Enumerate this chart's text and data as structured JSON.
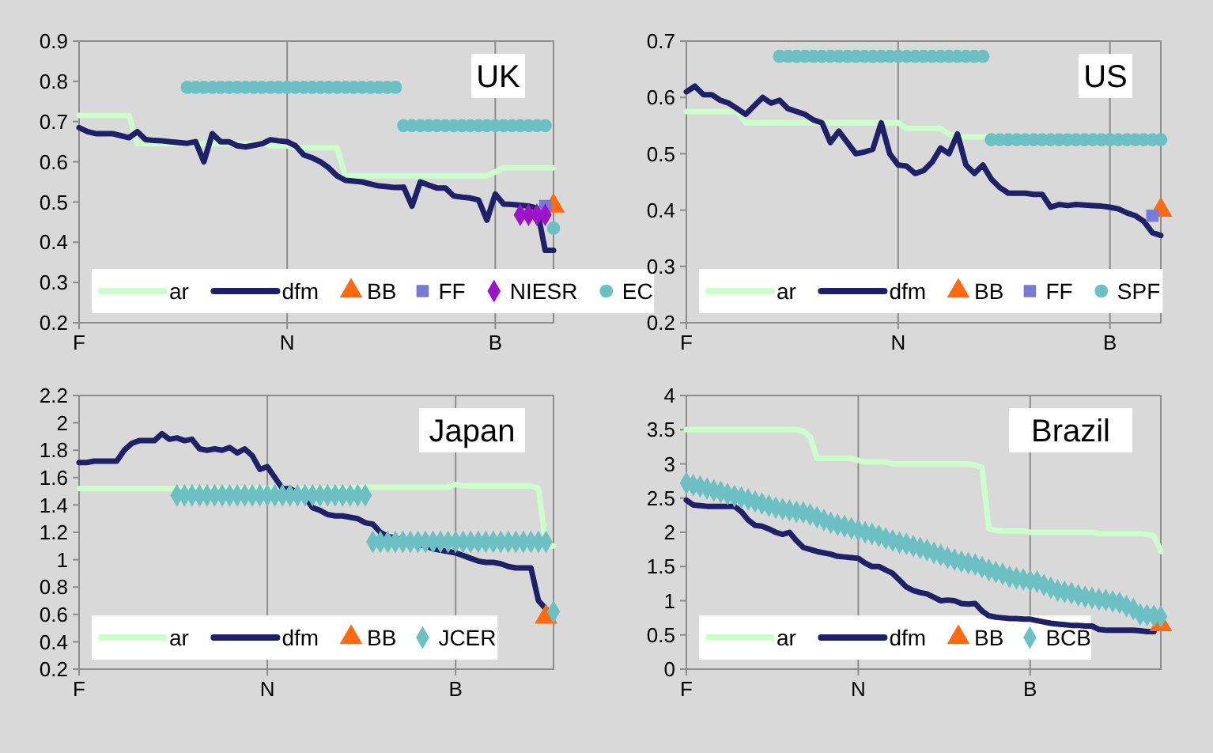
{
  "chart_data": [
    {
      "type": "line",
      "title": "UK",
      "categories": [
        "F",
        null,
        null,
        null,
        null,
        null,
        null,
        null,
        null,
        null,
        null,
        null,
        null,
        null,
        null,
        null,
        null,
        null,
        null,
        null,
        null,
        null,
        null,
        null,
        null,
        "N",
        null,
        null,
        null,
        null,
        null,
        null,
        null,
        null,
        null,
        null,
        null,
        null,
        null,
        null,
        null,
        null,
        null,
        null,
        null,
        null,
        null,
        null,
        null,
        null,
        "B",
        null,
        null,
        null,
        null,
        null,
        null,
        null
      ],
      "ylim": [
        0.2,
        0.9
      ],
      "yticks": [
        0.2,
        0.3,
        0.4,
        0.5,
        0.6,
        0.7,
        0.8,
        0.9
      ],
      "grid": "x",
      "legend": "bottom",
      "series": [
        {
          "name": "ar",
          "color": "#ccffcc",
          "values": [
            0.715,
            0.715,
            0.715,
            0.715,
            0.715,
            0.715,
            0.715,
            0.645,
            0.645,
            0.645,
            0.645,
            0.645,
            0.645,
            0.645,
            0.645,
            0.645,
            0.645,
            0.645,
            0.645,
            0.645,
            0.645,
            0.645,
            0.645,
            0.64,
            0.64,
            0.64,
            0.635,
            0.635,
            0.635,
            0.635,
            0.635,
            0.635,
            0.565,
            0.565,
            0.565,
            0.565,
            0.565,
            0.565,
            0.565,
            0.565,
            0.565,
            0.565,
            0.565,
            0.565,
            0.565,
            0.565,
            0.565,
            0.565,
            0.565,
            0.565,
            0.575,
            0.585,
            0.585,
            0.585,
            0.585,
            0.585,
            0.585,
            0.585
          ]
        },
        {
          "name": "dfm",
          "color": "#1f2068",
          "values": [
            0.685,
            0.675,
            0.67,
            0.67,
            0.67,
            0.665,
            0.66,
            0.675,
            0.655,
            0.653,
            0.652,
            0.65,
            0.648,
            0.646,
            0.65,
            0.6,
            0.67,
            0.65,
            0.65,
            0.64,
            0.637,
            0.641,
            0.645,
            0.655,
            0.652,
            0.65,
            0.64,
            0.617,
            0.61,
            0.6,
            0.585,
            0.565,
            0.554,
            0.552,
            0.55,
            0.545,
            0.54,
            0.538,
            0.536,
            0.537,
            0.49,
            0.55,
            0.542,
            0.535,
            0.535,
            0.515,
            0.512,
            0.51,
            0.505,
            0.455,
            0.52,
            0.495,
            0.494,
            0.492,
            0.49,
            0.485,
            0.38,
            0.38
          ]
        },
        {
          "name": "BB",
          "type": "scatter",
          "marker": "triangle",
          "color": "#ff6a13",
          "values": [
            null,
            null,
            null,
            null,
            null,
            null,
            null,
            null,
            null,
            null,
            null,
            null,
            null,
            null,
            null,
            null,
            null,
            null,
            null,
            null,
            null,
            null,
            null,
            null,
            null,
            null,
            null,
            null,
            null,
            null,
            null,
            null,
            null,
            null,
            null,
            null,
            null,
            null,
            null,
            null,
            null,
            null,
            null,
            null,
            null,
            null,
            null,
            null,
            null,
            null,
            null,
            null,
            null,
            null,
            null,
            null,
            null,
            0.49
          ]
        },
        {
          "name": "FF",
          "type": "scatter",
          "marker": "square",
          "color": "#7a78d8",
          "values": [
            null,
            null,
            null,
            null,
            null,
            null,
            null,
            null,
            null,
            null,
            null,
            null,
            null,
            null,
            null,
            null,
            null,
            null,
            null,
            null,
            null,
            null,
            null,
            null,
            null,
            null,
            null,
            null,
            null,
            null,
            null,
            null,
            null,
            null,
            null,
            null,
            null,
            null,
            null,
            null,
            null,
            null,
            null,
            null,
            null,
            null,
            null,
            null,
            null,
            null,
            null,
            null,
            null,
            null,
            null,
            null,
            0.49,
            null
          ]
        },
        {
          "name": "NIESR",
          "type": "scatter",
          "marker": "diamond",
          "color": "#9b14c8",
          "values": [
            null,
            null,
            null,
            null,
            null,
            null,
            null,
            null,
            null,
            null,
            null,
            null,
            null,
            null,
            null,
            null,
            null,
            null,
            null,
            null,
            null,
            null,
            null,
            null,
            null,
            null,
            null,
            null,
            null,
            null,
            null,
            null,
            null,
            null,
            null,
            null,
            null,
            null,
            null,
            null,
            null,
            null,
            null,
            null,
            null,
            null,
            null,
            null,
            null,
            null,
            null,
            null,
            null,
            0.468,
            0.468,
            0.468,
            0.468,
            null
          ]
        },
        {
          "name": "EC",
          "type": "scatter",
          "marker": "circle",
          "color": "#6cc0c4",
          "values": [
            null,
            null,
            null,
            null,
            null,
            null,
            null,
            null,
            null,
            null,
            null,
            null,
            null,
            0.785,
            0.785,
            0.785,
            0.785,
            0.785,
            0.785,
            0.785,
            0.785,
            0.785,
            0.785,
            0.785,
            0.785,
            0.785,
            0.785,
            0.785,
            0.785,
            0.785,
            0.785,
            0.785,
            0.785,
            0.785,
            0.785,
            0.785,
            0.785,
            0.785,
            0.785,
            0.69,
            0.69,
            0.69,
            0.69,
            0.69,
            0.69,
            0.69,
            0.69,
            0.69,
            0.69,
            0.69,
            0.69,
            0.69,
            0.69,
            0.69,
            0.69,
            0.69,
            0.69,
            0.435
          ]
        }
      ]
    },
    {
      "type": "line",
      "title": "US",
      "categories": [
        "F",
        null,
        null,
        null,
        null,
        null,
        null,
        null,
        null,
        null,
        null,
        null,
        null,
        null,
        null,
        null,
        null,
        null,
        null,
        null,
        null,
        null,
        null,
        null,
        null,
        "N",
        null,
        null,
        null,
        null,
        null,
        null,
        null,
        null,
        null,
        null,
        null,
        null,
        null,
        null,
        null,
        null,
        null,
        null,
        null,
        null,
        null,
        null,
        null,
        null,
        "B",
        null,
        null,
        null,
        null,
        null,
        null
      ],
      "ylim": [
        0.2,
        0.7
      ],
      "yticks": [
        0.2,
        0.3,
        0.4,
        0.5,
        0.6,
        0.7
      ],
      "grid": "x",
      "legend": "bottom",
      "series": [
        {
          "name": "ar",
          "color": "#ccffcc",
          "values": [
            0.575,
            0.575,
            0.575,
            0.575,
            0.575,
            0.575,
            0.575,
            0.555,
            0.555,
            0.555,
            0.555,
            0.555,
            0.555,
            0.555,
            0.555,
            0.555,
            0.555,
            0.555,
            0.555,
            0.555,
            0.555,
            0.555,
            0.555,
            0.555,
            0.555,
            0.555,
            0.545,
            0.545,
            0.545,
            0.545,
            0.545,
            0.535,
            0.53,
            0.53,
            0.53,
            0.53,
            0.53,
            0.53,
            0.53,
            0.53,
            0.53,
            0.53,
            0.53,
            0.53,
            0.53,
            0.53,
            0.53,
            0.53,
            0.53,
            0.53,
            0.53,
            0.53,
            0.53,
            0.53,
            0.53,
            0.53,
            0.53
          ]
        },
        {
          "name": "dfm",
          "color": "#1f2068",
          "values": [
            0.61,
            0.62,
            0.605,
            0.605,
            0.595,
            0.59,
            0.58,
            0.57,
            0.585,
            0.6,
            0.59,
            0.595,
            0.58,
            0.575,
            0.57,
            0.56,
            0.555,
            0.52,
            0.54,
            0.52,
            0.5,
            0.503,
            0.508,
            0.555,
            0.5,
            0.48,
            0.478,
            0.465,
            0.47,
            0.485,
            0.51,
            0.5,
            0.535,
            0.48,
            0.465,
            0.48,
            0.455,
            0.44,
            0.43,
            0.43,
            0.43,
            0.428,
            0.428,
            0.405,
            0.41,
            0.408,
            0.41,
            0.409,
            0.408,
            0.407,
            0.405,
            0.402,
            0.395,
            0.39,
            0.38,
            0.36,
            0.355
          ]
        },
        {
          "name": "BB",
          "type": "scatter",
          "marker": "triangle",
          "color": "#ff6a13",
          "values": [
            null,
            null,
            null,
            null,
            null,
            null,
            null,
            null,
            null,
            null,
            null,
            null,
            null,
            null,
            null,
            null,
            null,
            null,
            null,
            null,
            null,
            null,
            null,
            null,
            null,
            null,
            null,
            null,
            null,
            null,
            null,
            null,
            null,
            null,
            null,
            null,
            null,
            null,
            null,
            null,
            null,
            null,
            null,
            null,
            null,
            null,
            null,
            null,
            null,
            null,
            null,
            null,
            null,
            null,
            null,
            null,
            0.4
          ]
        },
        {
          "name": "FF",
          "type": "scatter",
          "marker": "square",
          "color": "#7a78d8",
          "values": [
            null,
            null,
            null,
            null,
            null,
            null,
            null,
            null,
            null,
            null,
            null,
            null,
            null,
            null,
            null,
            null,
            null,
            null,
            null,
            null,
            null,
            null,
            null,
            null,
            null,
            null,
            null,
            null,
            null,
            null,
            null,
            null,
            null,
            null,
            null,
            null,
            null,
            null,
            null,
            null,
            null,
            null,
            null,
            null,
            null,
            null,
            null,
            null,
            null,
            null,
            null,
            null,
            null,
            null,
            null,
            0.39,
            null
          ]
        },
        {
          "name": "SPF",
          "type": "scatter",
          "marker": "circle",
          "color": "#6cc0c4",
          "values": [
            null,
            null,
            null,
            null,
            null,
            null,
            null,
            null,
            null,
            null,
            null,
            0.673,
            0.673,
            0.673,
            0.673,
            0.673,
            0.673,
            0.673,
            0.673,
            0.673,
            0.673,
            0.673,
            0.673,
            0.673,
            0.673,
            0.673,
            0.673,
            0.673,
            0.673,
            0.673,
            0.673,
            0.673,
            0.673,
            0.673,
            0.673,
            0.673,
            0.525,
            0.525,
            0.525,
            0.525,
            0.525,
            0.525,
            0.525,
            0.525,
            0.525,
            0.525,
            0.525,
            0.525,
            0.525,
            0.525,
            0.525,
            0.525,
            0.525,
            0.525,
            0.525,
            0.525,
            0.525
          ]
        }
      ]
    },
    {
      "type": "line",
      "title": "Japan",
      "categories": [
        "F",
        null,
        null,
        null,
        null,
        null,
        null,
        null,
        null,
        null,
        null,
        null,
        null,
        null,
        null,
        null,
        null,
        null,
        null,
        null,
        null,
        null,
        null,
        null,
        null,
        "N",
        null,
        null,
        null,
        null,
        null,
        null,
        null,
        null,
        null,
        null,
        null,
        null,
        null,
        null,
        null,
        null,
        null,
        null,
        null,
        null,
        null,
        null,
        null,
        null,
        "B",
        null,
        null,
        null,
        null,
        null,
        null,
        null,
        null,
        null,
        null,
        null,
        null,
        null
      ],
      "ylim": [
        0.2,
        2.2
      ],
      "yticks": [
        0.2,
        0.4,
        0.6,
        0.8,
        1,
        1.2,
        1.4,
        1.6,
        1.8,
        2,
        2.2
      ],
      "grid": "x",
      "legend": "bottom",
      "series": [
        {
          "name": "ar",
          "color": "#ccffcc",
          "values": [
            1.52,
            1.52,
            1.52,
            1.52,
            1.52,
            1.52,
            1.52,
            1.52,
            1.52,
            1.52,
            1.52,
            1.52,
            1.52,
            1.52,
            1.52,
            1.52,
            1.52,
            1.52,
            1.52,
            1.52,
            1.52,
            1.52,
            1.52,
            1.52,
            1.52,
            1.52,
            1.52,
            1.52,
            1.52,
            1.52,
            1.52,
            1.52,
            1.52,
            1.52,
            1.52,
            1.52,
            1.52,
            1.53,
            1.53,
            1.53,
            1.53,
            1.53,
            1.53,
            1.53,
            1.53,
            1.53,
            1.53,
            1.53,
            1.53,
            1.53,
            1.55,
            1.54,
            1.54,
            1.54,
            1.54,
            1.54,
            1.54,
            1.54,
            1.54,
            1.54,
            1.54,
            1.52,
            1.1,
            1.1
          ]
        },
        {
          "name": "dfm",
          "color": "#1f2068",
          "values": [
            1.71,
            1.71,
            1.72,
            1.72,
            1.72,
            1.72,
            1.8,
            1.85,
            1.87,
            1.87,
            1.87,
            1.92,
            1.88,
            1.89,
            1.87,
            1.88,
            1.81,
            1.8,
            1.81,
            1.8,
            1.82,
            1.78,
            1.81,
            1.76,
            1.66,
            1.68,
            1.6,
            1.52,
            1.52,
            1.49,
            1.46,
            1.38,
            1.36,
            1.33,
            1.32,
            1.32,
            1.31,
            1.3,
            1.27,
            1.26,
            1.2,
            1.17,
            1.16,
            1.14,
            1.12,
            1.11,
            1.1,
            1.08,
            1.07,
            1.06,
            1.05,
            1.03,
            1.01,
            0.99,
            0.98,
            0.98,
            0.97,
            0.95,
            0.94,
            0.94,
            0.94,
            0.7,
            0.64,
            null
          ]
        },
        {
          "name": "BB",
          "type": "scatter",
          "marker": "triangle",
          "color": "#ff6a13",
          "values": [
            null,
            null,
            null,
            null,
            null,
            null,
            null,
            null,
            null,
            null,
            null,
            null,
            null,
            null,
            null,
            null,
            null,
            null,
            null,
            null,
            null,
            null,
            null,
            null,
            null,
            null,
            null,
            null,
            null,
            null,
            null,
            null,
            null,
            null,
            null,
            null,
            null,
            null,
            null,
            null,
            null,
            null,
            null,
            null,
            null,
            null,
            null,
            null,
            null,
            null,
            null,
            null,
            null,
            null,
            null,
            null,
            null,
            null,
            null,
            null,
            null,
            null,
            0.58,
            null
          ]
        },
        {
          "name": "JCER",
          "type": "scatter",
          "marker": "diamond",
          "color": "#6cc0c4",
          "values": [
            null,
            null,
            null,
            null,
            null,
            null,
            null,
            null,
            null,
            null,
            null,
            null,
            null,
            1.47,
            1.47,
            1.47,
            1.47,
            1.47,
            1.47,
            1.47,
            1.47,
            1.47,
            1.47,
            1.47,
            1.47,
            1.47,
            1.47,
            1.47,
            1.47,
            1.47,
            1.47,
            1.47,
            1.47,
            1.47,
            1.47,
            1.47,
            1.47,
            1.47,
            1.47,
            1.13,
            1.13,
            1.13,
            1.13,
            1.13,
            1.13,
            1.13,
            1.13,
            1.13,
            1.13,
            1.13,
            1.13,
            1.13,
            1.13,
            1.13,
            1.13,
            1.13,
            1.13,
            1.13,
            1.13,
            1.13,
            1.13,
            1.13,
            1.13,
            0.62
          ]
        }
      ]
    },
    {
      "type": "line",
      "title": "Brazil",
      "categories": [
        "F",
        null,
        null,
        null,
        null,
        null,
        null,
        null,
        null,
        null,
        null,
        null,
        null,
        null,
        null,
        null,
        null,
        null,
        null,
        null,
        null,
        null,
        null,
        null,
        null,
        "N",
        null,
        null,
        null,
        null,
        null,
        null,
        null,
        null,
        null,
        null,
        null,
        null,
        null,
        null,
        null,
        null,
        null,
        null,
        null,
        null,
        null,
        null,
        null,
        null,
        "B",
        null,
        null,
        null,
        null,
        null,
        null,
        null,
        null,
        null,
        null,
        null,
        null,
        null,
        null,
        null,
        null,
        null,
        null,
        null
      ],
      "ylim": [
        0,
        4
      ],
      "yticks": [
        0,
        0.5,
        1,
        1.5,
        2,
        2.5,
        3,
        3.5,
        4
      ],
      "grid": "x",
      "legend": "bottom",
      "series": [
        {
          "name": "ar",
          "color": "#ccffcc",
          "values": [
            3.5,
            3.5,
            3.5,
            3.5,
            3.5,
            3.5,
            3.5,
            3.5,
            3.5,
            3.5,
            3.5,
            3.5,
            3.5,
            3.5,
            3.5,
            3.5,
            3.5,
            3.48,
            3.4,
            3.08,
            3.08,
            3.08,
            3.08,
            3.08,
            3.08,
            3.05,
            3.03,
            3.03,
            3.03,
            3.03,
            3.0,
            3.0,
            3.0,
            3.0,
            3.0,
            3.0,
            3.0,
            3.0,
            3.0,
            3.0,
            3.0,
            3.0,
            2.98,
            2.95,
            2.05,
            2.03,
            2.02,
            2.02,
            2.02,
            2.02,
            2.0,
            2.0,
            2.0,
            2.0,
            2.0,
            2.0,
            2.0,
            2.0,
            2.0,
            2.0,
            1.98,
            1.98,
            1.98,
            1.98,
            1.98,
            1.98,
            1.98,
            1.97,
            1.95,
            1.72
          ]
        },
        {
          "name": "dfm",
          "color": "#1f2068",
          "values": [
            2.47,
            2.4,
            2.39,
            2.38,
            2.38,
            2.38,
            2.38,
            2.38,
            2.3,
            2.18,
            2.1,
            2.09,
            2.05,
            2.0,
            1.97,
            2.0,
            1.88,
            1.78,
            1.75,
            1.72,
            1.7,
            1.68,
            1.65,
            1.64,
            1.63,
            1.62,
            1.55,
            1.5,
            1.5,
            1.45,
            1.4,
            1.3,
            1.2,
            1.15,
            1.12,
            1.1,
            1.05,
            1.0,
            1.01,
            1.0,
            0.96,
            0.95,
            0.96,
            0.85,
            0.78,
            0.76,
            0.75,
            0.74,
            0.74,
            0.73,
            0.73,
            0.71,
            0.69,
            0.67,
            0.66,
            0.65,
            0.64,
            0.64,
            0.63,
            0.63,
            0.58,
            0.57,
            0.57,
            0.57,
            0.57,
            0.57,
            0.56,
            0.55,
            0.55,
            null
          ]
        },
        {
          "name": "BB",
          "type": "scatter",
          "marker": "triangle",
          "color": "#ff6a13",
          "values": [
            null,
            null,
            null,
            null,
            null,
            null,
            null,
            null,
            null,
            null,
            null,
            null,
            null,
            null,
            null,
            null,
            null,
            null,
            null,
            null,
            null,
            null,
            null,
            null,
            null,
            null,
            null,
            null,
            null,
            null,
            null,
            null,
            null,
            null,
            null,
            null,
            null,
            null,
            null,
            null,
            null,
            null,
            null,
            null,
            null,
            null,
            null,
            null,
            null,
            null,
            null,
            null,
            null,
            null,
            null,
            null,
            null,
            null,
            null,
            null,
            null,
            null,
            null,
            null,
            null,
            null,
            null,
            null,
            null,
            0.65
          ]
        },
        {
          "name": "BCB",
          "type": "scatter",
          "marker": "diamond",
          "color": "#6cc0c4",
          "values": [
            2.72,
            2.69,
            2.67,
            2.64,
            2.61,
            2.59,
            2.56,
            2.53,
            2.51,
            2.48,
            2.45,
            2.42,
            2.39,
            2.36,
            2.34,
            2.32,
            2.3,
            2.29,
            2.26,
            2.22,
            2.18,
            2.14,
            2.11,
            2.09,
            2.06,
            2.03,
            2.0,
            1.98,
            1.95,
            1.91,
            1.88,
            1.85,
            1.83,
            1.8,
            1.77,
            1.74,
            1.7,
            1.67,
            1.63,
            1.6,
            1.57,
            1.55,
            1.53,
            1.49,
            1.45,
            1.42,
            1.39,
            1.35,
            1.33,
            1.31,
            1.29,
            1.28,
            1.23,
            1.19,
            1.15,
            1.13,
            1.11,
            1.08,
            1.06,
            1.04,
            1.02,
            1.01,
            0.99,
            0.97,
            0.92,
            0.88,
            0.8,
            0.79,
            0.78,
            0.77
          ]
        }
      ]
    }
  ]
}
